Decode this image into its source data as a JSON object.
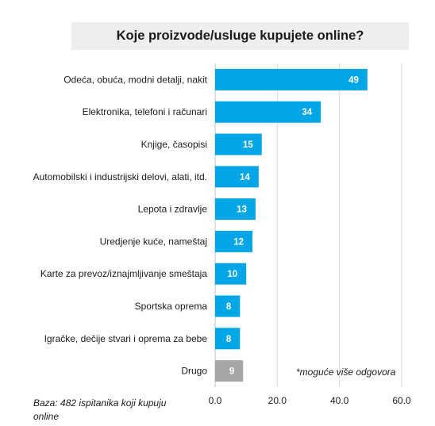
{
  "chart_data": {
    "type": "bar",
    "orientation": "horizontal",
    "title": "Koje proizvode/usluge kupujete online?",
    "categories": [
      "Odeća, obuća, modni detalji, nakit",
      "Elektronika, telefoni i računari",
      "Knjige, časopisi",
      "Automobilski i industrijski delovi, alati, itd.",
      "Lepota i zdravlje",
      "Uredjenje kuće, nameštaj",
      "Karte za prevoz/iznajmljivanje smeštaja",
      "Sportska oprema",
      "Igračke, dečije stvari i oprema za bebe",
      "Drugo"
    ],
    "values": [
      49,
      34,
      15,
      14,
      13,
      12,
      10,
      8,
      8,
      9
    ],
    "value_labels": [
      "49",
      "34",
      "15",
      "14",
      "13",
      "12",
      "10",
      "8",
      "8",
      "9"
    ],
    "xlim": [
      0,
      60
    ],
    "x_ticks": [
      "0.0",
      "20.0",
      "40.0",
      "60.0"
    ],
    "grid": true,
    "colors": {
      "bar": "#00a6e6",
      "bar_other": "#a6a6a6",
      "grid": "#d9d9d9",
      "title_bg": "#eeeeee"
    },
    "annotation": "*moguće više odgovora",
    "base_note": "Baza: 482 ispitanika koji kupuju online"
  }
}
